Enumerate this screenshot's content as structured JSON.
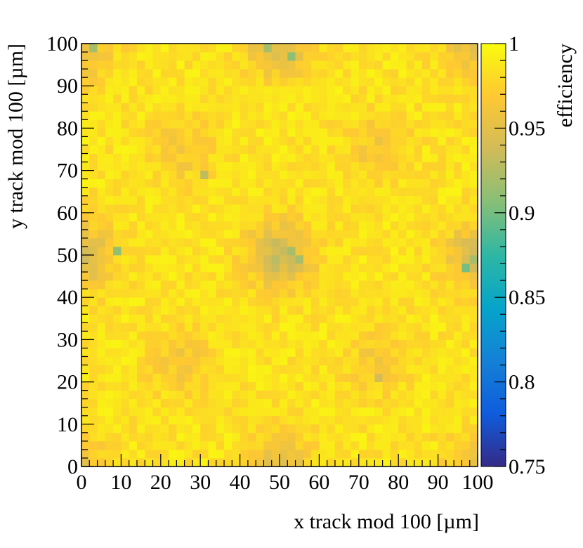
{
  "chart_data": {
    "type": "heatmap",
    "xlabel": "x track mod 100 [µm]",
    "ylabel": "y track mod 100 [µm]",
    "zlabel": "efficiency",
    "xlim": [
      0,
      100
    ],
    "ylim": [
      0,
      100
    ],
    "zlim": [
      0.75,
      1.0
    ],
    "x_ticks": [
      "0",
      "10",
      "20",
      "30",
      "40",
      "50",
      "60",
      "70",
      "80",
      "90",
      "100"
    ],
    "y_ticks": [
      "0",
      "10",
      "20",
      "30",
      "40",
      "50",
      "60",
      "70",
      "80",
      "90",
      "100"
    ],
    "z_ticks": [
      "0.75",
      "0.8",
      "0.85",
      "0.9",
      "0.95",
      "1"
    ],
    "bin_width": 2,
    "nbins_x": 50,
    "nbins_y": 50,
    "colormap": [
      "#352a87",
      "#0f5cdd",
      "#1481d6",
      "#06a4ca",
      "#2eb7a4",
      "#87bf77",
      "#d1bb59",
      "#fec832",
      "#f9fb0e"
    ],
    "efficiency_map": {
      "baseline": 0.985,
      "low_efficiency_regions": [
        {
          "x": 50,
          "y": 50,
          "efficiency": 0.935
        },
        {
          "x": 0,
          "y": 50,
          "efficiency": 0.94
        },
        {
          "x": 100,
          "y": 50,
          "efficiency": 0.94
        },
        {
          "x": 50,
          "y": 100,
          "efficiency": 0.94
        },
        {
          "x": 50,
          "y": 0,
          "efficiency": 0.95
        },
        {
          "x": 0,
          "y": 100,
          "efficiency": 0.95
        },
        {
          "x": 100,
          "y": 100,
          "efficiency": 0.95
        },
        {
          "x": 0,
          "y": 0,
          "efficiency": 0.96
        },
        {
          "x": 100,
          "y": 0,
          "efficiency": 0.96
        },
        {
          "x": 25,
          "y": 75,
          "efficiency": 0.965
        },
        {
          "x": 75,
          "y": 75,
          "efficiency": 0.965
        },
        {
          "x": 25,
          "y": 25,
          "efficiency": 0.965
        },
        {
          "x": 75,
          "y": 25,
          "efficiency": 0.965
        }
      ],
      "outlier_bins": [
        {
          "x": 9,
          "y": 51,
          "efficiency": 0.91
        },
        {
          "x": 53,
          "y": 51,
          "efficiency": 0.92
        },
        {
          "x": 55,
          "y": 49,
          "efficiency": 0.92
        },
        {
          "x": 97,
          "y": 47,
          "efficiency": 0.9
        },
        {
          "x": 99,
          "y": 49,
          "efficiency": 0.92
        },
        {
          "x": 3,
          "y": 99,
          "efficiency": 0.92
        },
        {
          "x": 47,
          "y": 99,
          "efficiency": 0.92
        },
        {
          "x": 53,
          "y": 97,
          "efficiency": 0.91
        },
        {
          "x": 31,
          "y": 69,
          "efficiency": 0.93
        },
        {
          "x": 75,
          "y": 21,
          "efficiency": 0.94
        }
      ]
    }
  }
}
